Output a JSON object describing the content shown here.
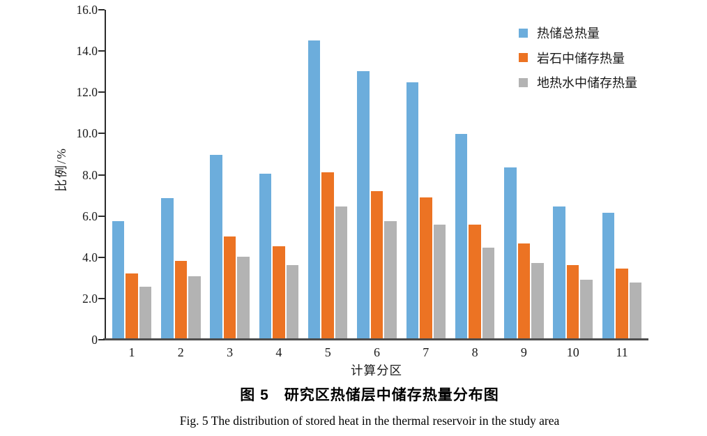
{
  "chart_data": {
    "type": "bar",
    "title": "",
    "xlabel": "计算分区",
    "ylabel": "比例/%",
    "ylim": [
      0,
      16
    ],
    "yticks": [
      "16.0",
      "14.0",
      "12.0",
      "10.0",
      "8.0",
      "6.0",
      "4.0",
      "2.0",
      "0"
    ],
    "grid": false,
    "legend_position": "top-right",
    "categories": [
      "1",
      "2",
      "3",
      "4",
      "5",
      "6",
      "7",
      "8",
      "9",
      "10",
      "11"
    ],
    "series": [
      {
        "name": "热储总热量",
        "color": "#6CADDC",
        "values": [
          5.7,
          6.8,
          8.9,
          8.0,
          14.45,
          12.95,
          12.4,
          9.9,
          8.3,
          6.4,
          6.1
        ]
      },
      {
        "name": "岩石中储存热量",
        "color": "#EC7323",
        "values": [
          3.15,
          3.75,
          4.95,
          4.45,
          8.05,
          7.15,
          6.85,
          5.5,
          4.6,
          3.55,
          3.4
        ]
      },
      {
        "name": "地热水中储存热量",
        "color": "#B3B3B3",
        "values": [
          2.5,
          3.0,
          3.95,
          3.55,
          6.4,
          5.7,
          5.5,
          4.4,
          3.65,
          2.85,
          2.7
        ]
      }
    ]
  },
  "captions": {
    "chinese": "图 5　研究区热储层中储存热量分布图",
    "english": "Fig. 5   The distribution of stored heat in the thermal reservoir in the study area"
  }
}
